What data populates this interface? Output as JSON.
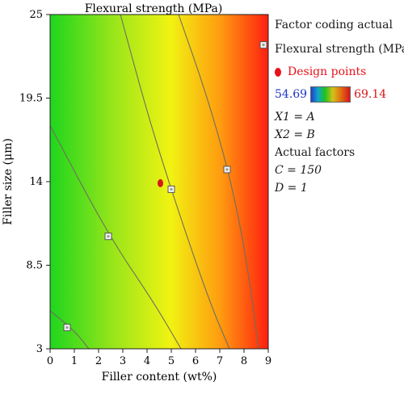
{
  "chart_data": {
    "type": "contour",
    "title": "Flexural strength (MPa)",
    "xlabel": "Filler content (wt%)",
    "ylabel": "Filler size (μm)",
    "xlim": [
      0,
      9
    ],
    "ylim": [
      3,
      25
    ],
    "x_ticks": [
      "0",
      "1",
      "2",
      "3",
      "4",
      "5",
      "6",
      "7",
      "8",
      "9"
    ],
    "y_ticks": [
      "3",
      "8.5",
      "14",
      "19.5",
      "25"
    ],
    "colorscale": {
      "min": 54.69,
      "max": 69.14,
      "min_label": "54.69",
      "max_label": "69.14",
      "colors": [
        "#1f3fd4",
        "#12a6c8",
        "#1ec21e",
        "#d4c21a",
        "#e07a12",
        "#d8141a"
      ]
    },
    "contour_lines": [
      {
        "points": [
          [
            0,
            5.5
          ],
          [
            1.0,
            4.2
          ],
          [
            1.6,
            3
          ]
        ]
      },
      {
        "points": [
          [
            0,
            17.7
          ],
          [
            2.4,
            10.5
          ],
          [
            4.3,
            6.0
          ],
          [
            5.4,
            3
          ]
        ]
      },
      {
        "points": [
          [
            2.9,
            25
          ],
          [
            4.1,
            18.0
          ],
          [
            5.3,
            12.0
          ],
          [
            6.6,
            6.0
          ],
          [
            7.4,
            3
          ]
        ]
      },
      {
        "points": [
          [
            5.3,
            25
          ],
          [
            6.4,
            20.0
          ],
          [
            7.4,
            14.5
          ],
          [
            8.1,
            9.0
          ],
          [
            8.6,
            3
          ]
        ]
      }
    ],
    "design_points": [
      {
        "x": 0.7,
        "y": 4.4
      },
      {
        "x": 2.4,
        "y": 10.4
      },
      {
        "x": 5.0,
        "y": 13.5
      },
      {
        "x": 7.3,
        "y": 14.8
      },
      {
        "x": 8.8,
        "y": 23.0
      }
    ],
    "highlight_point": {
      "x": 4.55,
      "y": 13.9
    }
  },
  "legend": {
    "coding": "Factor coding actual",
    "response": "Flexural strength (MPa)",
    "design_points_label": "Design points",
    "x1": "X1 = A",
    "x2": "X2 = B",
    "actual_factors": "Actual factors",
    "c_value": "C = 150",
    "d_value": "D = 1"
  }
}
